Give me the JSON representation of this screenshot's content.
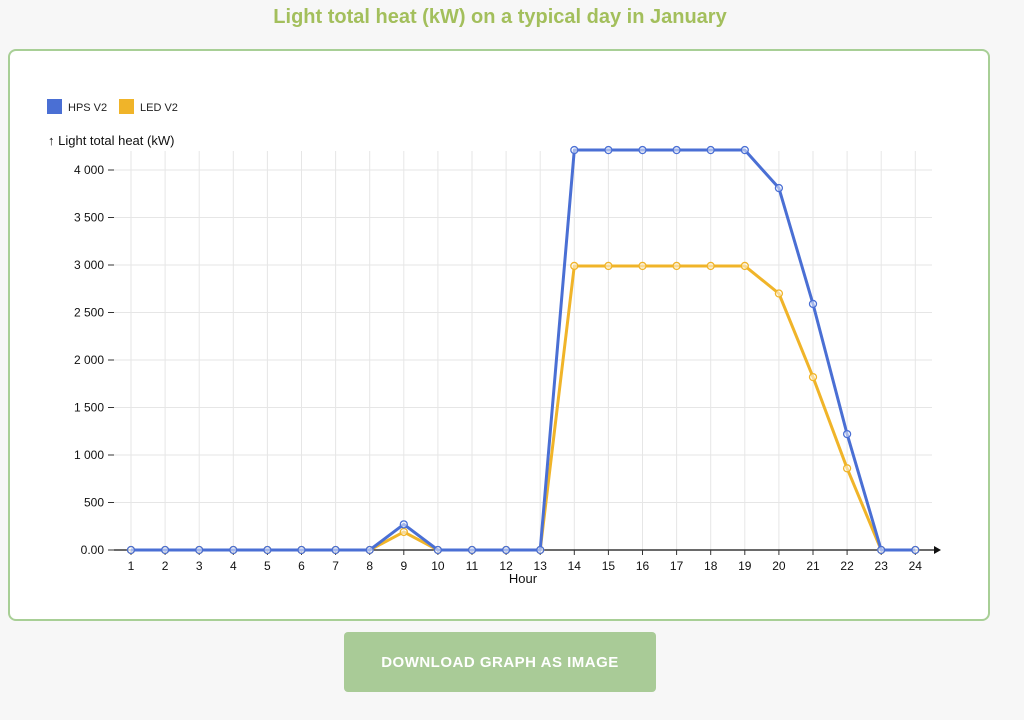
{
  "page": {
    "title": "Light total heat (kW) on a typical day in January",
    "download_label": "DOWNLOAD GRAPH AS IMAGE"
  },
  "chart_data": {
    "type": "line",
    "title": "Light total heat (kW) on a typical day in January",
    "xlabel": "Hour",
    "ylabel": "↑ Light total heat (kW)",
    "x": [
      1,
      2,
      3,
      4,
      5,
      6,
      7,
      8,
      9,
      10,
      11,
      12,
      13,
      14,
      15,
      16,
      17,
      18,
      19,
      20,
      21,
      22,
      23,
      24
    ],
    "ylim": [
      0,
      4200
    ],
    "yticks": [
      0,
      500,
      1000,
      1500,
      2000,
      2500,
      3000,
      3500,
      4000
    ],
    "ytick_labels": [
      "0.00",
      "500",
      "1 000",
      "1 500",
      "2 000",
      "2 500",
      "3 000",
      "3 500",
      "4 000"
    ],
    "grid": true,
    "legend_position": "top-left",
    "series": [
      {
        "name": "HPS V2",
        "color": "#4a6fd4",
        "values": [
          0,
          0,
          0,
          0,
          0,
          0,
          0,
          0,
          270,
          0,
          0,
          0,
          0,
          4210,
          4210,
          4210,
          4210,
          4210,
          4210,
          3810,
          2590,
          1220,
          0,
          0
        ]
      },
      {
        "name": "LED V2",
        "color": "#f0b429",
        "values": [
          0,
          0,
          0,
          0,
          0,
          0,
          0,
          0,
          190,
          0,
          0,
          0,
          0,
          2990,
          2990,
          2990,
          2990,
          2990,
          2990,
          2700,
          1820,
          860,
          0,
          0
        ]
      }
    ]
  }
}
